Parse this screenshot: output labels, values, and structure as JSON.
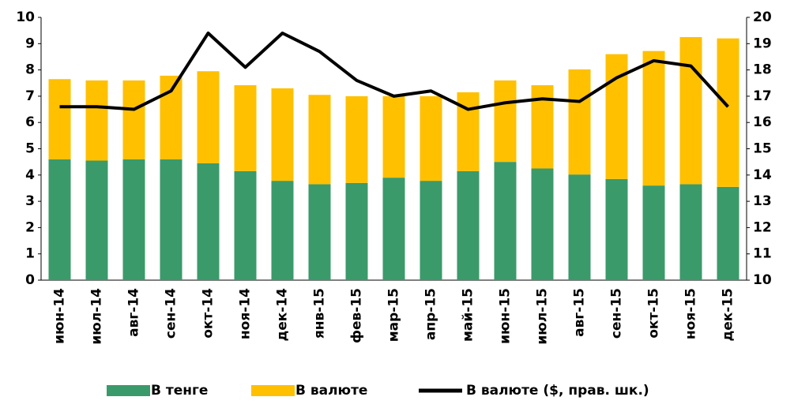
{
  "chart_data": {
    "type": "bar",
    "stacked": true,
    "categories": [
      "июн-14",
      "июл-14",
      "авг-14",
      "сен-14",
      "окт-14",
      "ноя-14",
      "дек-14",
      "янв-15",
      "фев-15",
      "мар-15",
      "апр-15",
      "май-15",
      "июн-15",
      "июл-15",
      "авг-15",
      "сен-15",
      "окт-15",
      "ноя-15",
      "дек-15"
    ],
    "series": [
      {
        "name": "В тенге",
        "color": "#3a9a6a",
        "values": [
          4.6,
          4.55,
          4.6,
          4.6,
          4.45,
          4.15,
          3.78,
          3.65,
          3.7,
          3.9,
          3.78,
          4.15,
          4.5,
          4.25,
          4.02,
          3.85,
          3.6,
          3.65,
          3.55
        ]
      },
      {
        "name": "В валюте",
        "color": "#ffc000",
        "values": [
          3.05,
          3.05,
          3.0,
          3.18,
          3.5,
          3.27,
          3.52,
          3.4,
          3.3,
          3.1,
          3.22,
          3.0,
          3.1,
          3.17,
          4.0,
          4.75,
          5.12,
          5.6,
          5.65
        ]
      },
      {
        "name": "В валюте ($, прав. шк.)",
        "color": "#000000",
        "type": "line",
        "axis": "y2",
        "values": [
          16.6,
          16.6,
          16.5,
          17.2,
          19.4,
          18.1,
          19.4,
          18.7,
          17.6,
          17.0,
          17.2,
          16.5,
          16.75,
          16.9,
          16.8,
          17.7,
          18.35,
          18.15,
          16.6
        ]
      }
    ],
    "ylim": [
      0,
      10
    ],
    "yticks": [
      0,
      1,
      2,
      3,
      4,
      5,
      6,
      7,
      8,
      9,
      10
    ],
    "y2lim": [
      10,
      20
    ],
    "y2ticks": [
      10,
      11,
      12,
      13,
      14,
      15,
      16,
      17,
      18,
      19,
      20
    ],
    "legend": "bottom"
  }
}
